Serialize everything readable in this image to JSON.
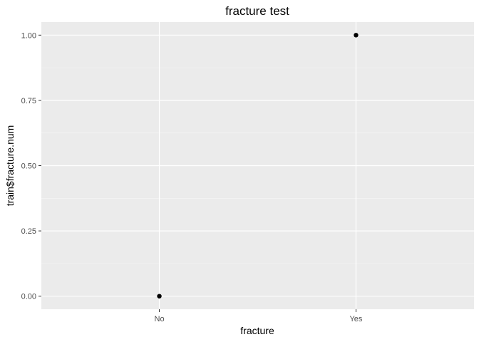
{
  "chart_data": {
    "type": "scatter",
    "title": "fracture  test",
    "xlabel": "fracture",
    "ylabel": "train$fracture.num",
    "categories": [
      "No",
      "Yes"
    ],
    "points": [
      {
        "x": "No",
        "y": 0
      },
      {
        "x": "Yes",
        "y": 1
      }
    ],
    "yticks": [
      0,
      0.25,
      0.5,
      0.75,
      1.0
    ],
    "ytick_labels": [
      "0.00",
      "0.25",
      "0.50",
      "0.75",
      "1.00"
    ],
    "ylim": [
      -0.05,
      1.05
    ],
    "grid": true,
    "colors": {
      "panel_background": "#ebebeb",
      "grid_major": "#ffffff",
      "grid_minor": "#f5f5f5",
      "point": "#000000",
      "tick": "#333333"
    }
  }
}
